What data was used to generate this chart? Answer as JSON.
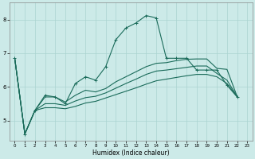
{
  "xlabel": "Humidex (Indice chaleur)",
  "xlim": [
    -0.5,
    23.5
  ],
  "ylim": [
    4.4,
    8.5
  ],
  "x_ticks": [
    0,
    1,
    2,
    3,
    4,
    5,
    6,
    7,
    8,
    9,
    10,
    11,
    12,
    13,
    14,
    15,
    16,
    17,
    18,
    19,
    20,
    21,
    22,
    23
  ],
  "y_ticks": [
    5,
    6,
    7,
    8
  ],
  "bg_color": "#cceae8",
  "grid_color": "#aad4d0",
  "line_color": "#1a6b5a",
  "line_x": [
    0,
    1,
    2,
    3,
    4,
    5,
    6,
    7,
    8,
    9,
    10,
    11,
    12,
    13,
    14,
    15,
    16,
    17,
    18,
    19,
    20,
    21,
    22
  ],
  "main_line_y": [
    6.85,
    4.6,
    5.3,
    5.75,
    5.7,
    5.5,
    6.1,
    6.3,
    6.2,
    6.6,
    7.4,
    7.75,
    7.9,
    8.12,
    8.05,
    6.85,
    6.85,
    6.85,
    6.5,
    6.5,
    6.5,
    6.05,
    5.7
  ],
  "smooth_lines_y": [
    [
      6.85,
      4.6,
      5.3,
      5.7,
      5.7,
      5.55,
      5.75,
      5.9,
      5.85,
      5.95,
      6.15,
      6.3,
      6.45,
      6.6,
      6.7,
      6.72,
      6.78,
      6.82,
      6.83,
      6.83,
      6.55,
      6.52,
      5.72
    ],
    [
      6.85,
      4.6,
      5.3,
      5.5,
      5.5,
      5.45,
      5.58,
      5.68,
      5.72,
      5.82,
      5.96,
      6.1,
      6.23,
      6.37,
      6.47,
      6.5,
      6.54,
      6.58,
      6.62,
      6.62,
      6.4,
      6.2,
      5.72
    ],
    [
      6.85,
      4.6,
      5.3,
      5.38,
      5.38,
      5.35,
      5.42,
      5.52,
      5.57,
      5.67,
      5.77,
      5.87,
      5.97,
      6.08,
      6.18,
      6.23,
      6.28,
      6.33,
      6.37,
      6.37,
      6.3,
      6.1,
      5.72
    ]
  ]
}
